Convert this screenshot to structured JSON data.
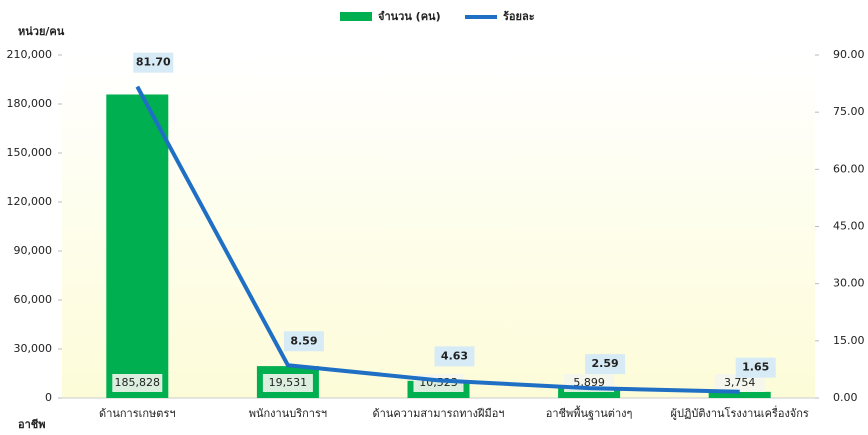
{
  "chart_data": {
    "type": "bar",
    "y_label": "หน่วย/คน",
    "x_label": "อาชีพ",
    "categories": [
      "ด้านการเกษตรฯ",
      "พนักงานบริการฯ",
      "ด้านความสามารถทางฝีมือฯ",
      "อาชีพพื้นฐานต่างๆ",
      "ผู้ปฏิบัติงานโรงงานเครื่องจักร"
    ],
    "series": [
      {
        "name": "จำนวน (คน)",
        "type": "bar",
        "color": "#00b050",
        "values": [
          185828,
          19531,
          10523,
          5899,
          3754
        ],
        "value_labels": [
          "185,828",
          "19,531",
          "10,523",
          "5,899",
          "3,754"
        ]
      },
      {
        "name": "ร้อยละ",
        "type": "line",
        "axis": "y2",
        "color": "#1f6fc5",
        "values": [
          81.7,
          8.59,
          4.63,
          2.59,
          1.65
        ],
        "value_labels": [
          "81.70",
          "8.59",
          "4.63",
          "2.59",
          "1.65"
        ]
      }
    ],
    "ylim": [
      0,
      210000
    ],
    "yticks": [
      0,
      {
        "value": 30000,
        "label": "30,000"
      },
      {
        "value": 60000,
        "label": "60,000"
      },
      {
        "value": 90000,
        "label": "90,000"
      },
      {
        "value": 120000,
        "label": "120,000"
      },
      {
        "value": 150000,
        "label": "150,000"
      },
      {
        "value": 180000,
        "label": "180,000"
      },
      {
        "value": 210000,
        "label": "210,000"
      }
    ],
    "y2lim": [
      0,
      90
    ],
    "y2ticks": [
      {
        "value": 0,
        "label": "0.00"
      },
      {
        "value": 15,
        "label": "15.00"
      },
      {
        "value": 30,
        "label": "30.00"
      },
      {
        "value": 45,
        "label": "45.00"
      },
      {
        "value": 60,
        "label": "60.00"
      },
      {
        "value": 75,
        "label": "75.00"
      },
      {
        "value": 90,
        "label": "90.00"
      }
    ],
    "legend": "top"
  }
}
